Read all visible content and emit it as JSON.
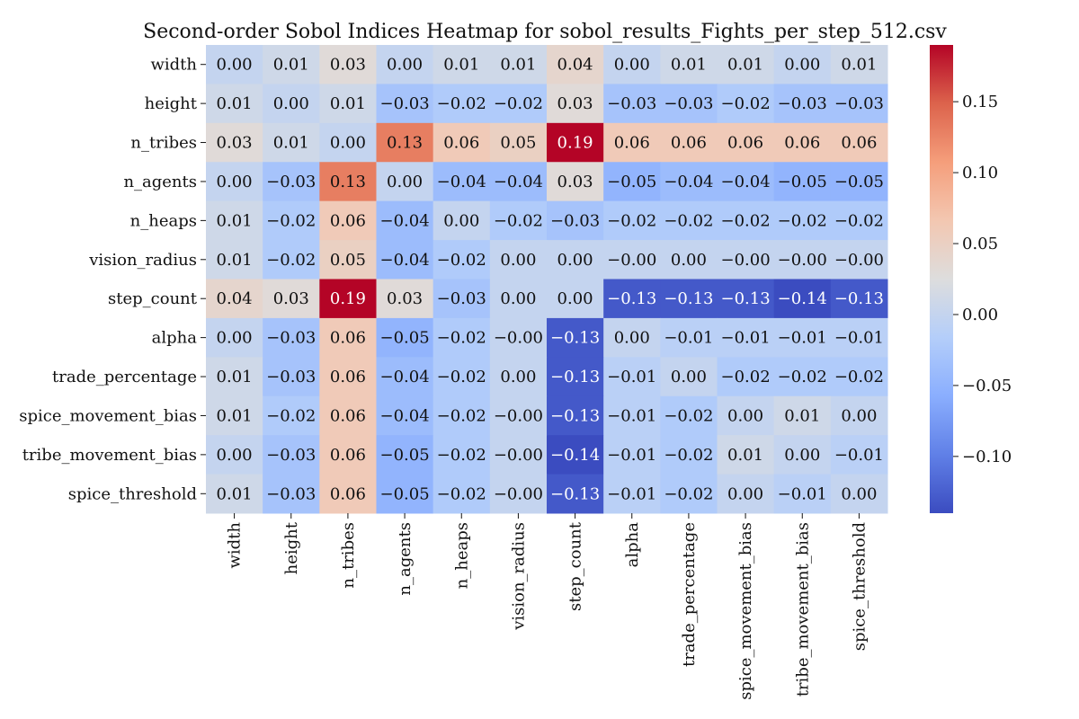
{
  "chart_data": {
    "type": "heatmap",
    "title": "Second-order Sobol Indices Heatmap for sobol_results_Fights_per_step_512.csv",
    "xlabel": "",
    "ylabel": "",
    "colormap": "coolwarm",
    "vmin": -0.14,
    "vmax": 0.19,
    "colorbar_ticks": [
      -0.1,
      -0.05,
      0.0,
      0.05,
      0.1,
      0.15
    ],
    "colorbar_tick_labels": [
      "−0.10",
      "−0.05",
      "0.00",
      "0.05",
      "0.10",
      "0.15"
    ],
    "row_labels": [
      "width",
      "height",
      "n_tribes",
      "n_agents",
      "n_heaps",
      "vision_radius",
      "step_count",
      "alpha",
      "trade_percentage",
      "spice_movement_bias",
      "tribe_movement_bias",
      "spice_threshold"
    ],
    "col_labels": [
      "width",
      "height",
      "n_tribes",
      "n_agents",
      "n_heaps",
      "vision_radius",
      "step_count",
      "alpha",
      "trade_percentage",
      "spice_movement_bias",
      "tribe_movement_bias",
      "spice_threshold"
    ],
    "values": [
      [
        0.0,
        0.01,
        0.03,
        0.0,
        0.01,
        0.01,
        0.04,
        0.0,
        0.01,
        0.01,
        0.0,
        0.01
      ],
      [
        0.01,
        0.0,
        0.01,
        -0.03,
        -0.02,
        -0.02,
        0.03,
        -0.03,
        -0.03,
        -0.02,
        -0.03,
        -0.03
      ],
      [
        0.03,
        0.01,
        0.0,
        0.13,
        0.06,
        0.05,
        0.19,
        0.06,
        0.06,
        0.06,
        0.06,
        0.06
      ],
      [
        0.0,
        -0.03,
        0.13,
        0.0,
        -0.04,
        -0.04,
        0.03,
        -0.05,
        -0.04,
        -0.04,
        -0.05,
        -0.05
      ],
      [
        0.01,
        -0.02,
        0.06,
        -0.04,
        0.0,
        -0.02,
        -0.03,
        -0.02,
        -0.02,
        -0.02,
        -0.02,
        -0.02
      ],
      [
        0.01,
        -0.02,
        0.05,
        -0.04,
        -0.02,
        0.0,
        0.0,
        -0.0,
        0.0,
        -0.0,
        -0.0,
        -0.0
      ],
      [
        0.04,
        0.03,
        0.19,
        0.03,
        -0.03,
        0.0,
        0.0,
        -0.13,
        -0.13,
        -0.13,
        -0.14,
        -0.13
      ],
      [
        0.0,
        -0.03,
        0.06,
        -0.05,
        -0.02,
        -0.0,
        -0.13,
        0.0,
        -0.01,
        -0.01,
        -0.01,
        -0.01
      ],
      [
        0.01,
        -0.03,
        0.06,
        -0.04,
        -0.02,
        0.0,
        -0.13,
        -0.01,
        0.0,
        -0.02,
        -0.02,
        -0.02
      ],
      [
        0.01,
        -0.02,
        0.06,
        -0.04,
        -0.02,
        -0.0,
        -0.13,
        -0.01,
        -0.02,
        0.0,
        0.01,
        0.0
      ],
      [
        0.0,
        -0.03,
        0.06,
        -0.05,
        -0.02,
        -0.0,
        -0.14,
        -0.01,
        -0.02,
        0.01,
        0.0,
        -0.01
      ],
      [
        0.01,
        -0.03,
        0.06,
        -0.05,
        -0.02,
        -0.0,
        -0.13,
        -0.01,
        -0.02,
        0.0,
        -0.01,
        0.0
      ]
    ],
    "cell_labels": [
      [
        "0.00",
        "0.01",
        "0.03",
        "0.00",
        "0.01",
        "0.01",
        "0.04",
        "0.00",
        "0.01",
        "0.01",
        "0.00",
        "0.01"
      ],
      [
        "0.01",
        "0.00",
        "0.01",
        "−0.03",
        "−0.02",
        "−0.02",
        "0.03",
        "−0.03",
        "−0.03",
        "−0.02",
        "−0.03",
        "−0.03"
      ],
      [
        "0.03",
        "0.01",
        "0.00",
        "0.13",
        "0.06",
        "0.05",
        "0.19",
        "0.06",
        "0.06",
        "0.06",
        "0.06",
        "0.06"
      ],
      [
        "0.00",
        "−0.03",
        "0.13",
        "0.00",
        "−0.04",
        "−0.04",
        "0.03",
        "−0.05",
        "−0.04",
        "−0.04",
        "−0.05",
        "−0.05"
      ],
      [
        "0.01",
        "−0.02",
        "0.06",
        "−0.04",
        "0.00",
        "−0.02",
        "−0.03",
        "−0.02",
        "−0.02",
        "−0.02",
        "−0.02",
        "−0.02"
      ],
      [
        "0.01",
        "−0.02",
        "0.05",
        "−0.04",
        "−0.02",
        "0.00",
        "0.00",
        "−0.00",
        "0.00",
        "−0.00",
        "−0.00",
        "−0.00"
      ],
      [
        "0.04",
        "0.03",
        "0.19",
        "0.03",
        "−0.03",
        "0.00",
        "0.00",
        "−0.13",
        "−0.13",
        "−0.13",
        "−0.14",
        "−0.13"
      ],
      [
        "0.00",
        "−0.03",
        "0.06",
        "−0.05",
        "−0.02",
        "−0.00",
        "−0.13",
        "0.00",
        "−0.01",
        "−0.01",
        "−0.01",
        "−0.01"
      ],
      [
        "0.01",
        "−0.03",
        "0.06",
        "−0.04",
        "−0.02",
        "0.00",
        "−0.13",
        "−0.01",
        "0.00",
        "−0.02",
        "−0.02",
        "−0.02"
      ],
      [
        "0.01",
        "−0.02",
        "0.06",
        "−0.04",
        "−0.02",
        "−0.00",
        "−0.13",
        "−0.01",
        "−0.02",
        "0.00",
        "0.01",
        "0.00"
      ],
      [
        "0.00",
        "−0.03",
        "0.06",
        "−0.05",
        "−0.02",
        "−0.00",
        "−0.14",
        "−0.01",
        "−0.02",
        "0.01",
        "0.00",
        "−0.01"
      ],
      [
        "0.01",
        "−0.03",
        "0.06",
        "−0.05",
        "−0.02",
        "−0.00",
        "−0.13",
        "−0.01",
        "−0.02",
        "0.00",
        "−0.01",
        "0.00"
      ]
    ],
    "grid": false,
    "legend": "colorbar-right"
  }
}
